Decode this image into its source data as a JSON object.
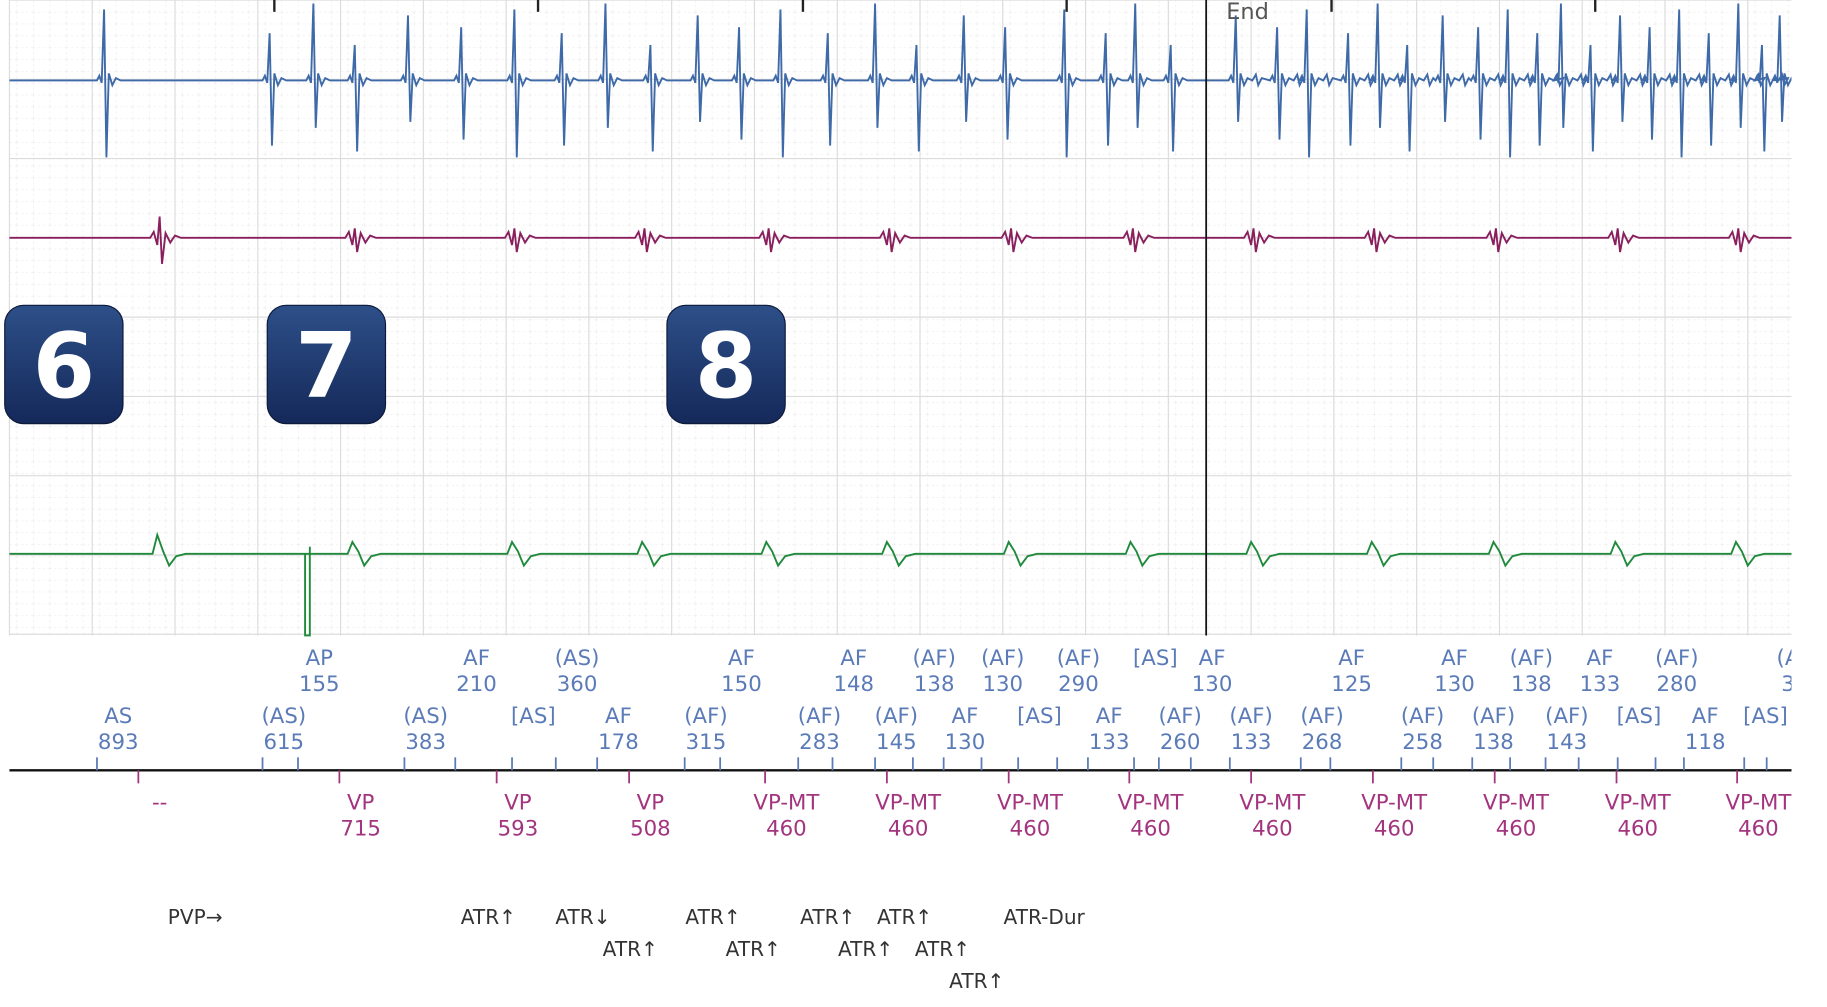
{
  "end_label": "End",
  "badges": [
    "6",
    "7",
    "8"
  ],
  "atrial_upper": [
    {
      "label": "AP",
      "value": 155
    },
    {
      "label": "AF",
      "value": 210
    },
    {
      "label": "(AS)",
      "value": 360
    },
    {
      "label": "AF",
      "value": 150
    },
    {
      "label": "AF",
      "value": 148
    },
    {
      "label": "(AF)",
      "value": 138
    },
    {
      "label": "(AF)",
      "value": 130
    },
    {
      "label": "(AF)",
      "value": 290
    },
    {
      "label": "[AS]"
    },
    {
      "label": "AF",
      "value": 130
    },
    {
      "label": "AF",
      "value": 125
    },
    {
      "label": "AF",
      "value": 130
    },
    {
      "label": "(AF)",
      "value": 138
    },
    {
      "label": "AF",
      "value": 133
    },
    {
      "label": "(AF)",
      "value": 280
    },
    {
      "label": "(A",
      "value": 3
    }
  ],
  "atrial_lower": [
    {
      "label": "AS",
      "value": 893
    },
    {
      "label": "(AS)",
      "value": 615
    },
    {
      "label": "(AS)",
      "value": 383
    },
    {
      "label": "[AS]"
    },
    {
      "label": "AF",
      "value": 178
    },
    {
      "label": "(AF)",
      "value": 315
    },
    {
      "label": "(AF)",
      "value": 283
    },
    {
      "label": "(AF)",
      "value": 145
    },
    {
      "label": "AF",
      "value": 130
    },
    {
      "label": "[AS]"
    },
    {
      "label": "AF",
      "value": 133
    },
    {
      "label": "(AF)",
      "value": 260
    },
    {
      "label": "(AF)",
      "value": 133
    },
    {
      "label": "(AF)",
      "value": 268
    },
    {
      "label": "(AF)",
      "value": 258
    },
    {
      "label": "(AF)",
      "value": 138
    },
    {
      "label": "(AF)",
      "value": 143
    },
    {
      "label": "[AS]"
    },
    {
      "label": "AF",
      "value": 118
    },
    {
      "label": "[AS]"
    }
  ],
  "ventricular": [
    {
      "label": "--"
    },
    {
      "label": "VP",
      "value": 715
    },
    {
      "label": "VP",
      "value": 593
    },
    {
      "label": "VP",
      "value": 508
    },
    {
      "label": "VP-MT",
      "value": 460
    },
    {
      "label": "VP-MT",
      "value": 460
    },
    {
      "label": "VP-MT",
      "value": 460
    },
    {
      "label": "VP-MT",
      "value": 460
    },
    {
      "label": "VP-MT",
      "value": 460
    },
    {
      "label": "VP-MT",
      "value": 460
    },
    {
      "label": "VP-MT",
      "value": 460
    },
    {
      "label": "VP-MT",
      "value": 460
    },
    {
      "label": "VP-MT",
      "value": 460
    }
  ],
  "annotations": [
    "PVP→",
    "ATR↑",
    "ATR↓",
    "ATR↑",
    "ATR↑",
    "ATR↑",
    "ATR↑",
    "ATR↑",
    "ATR↑",
    "ATR↑",
    "ATR↑",
    "ATR-Dur"
  ]
}
